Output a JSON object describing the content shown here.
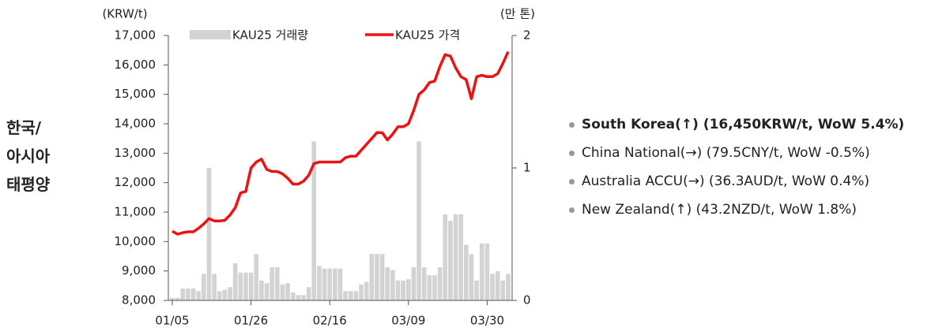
{
  "chart_data": {
    "type": "bar-line",
    "side_label": [
      "한국/",
      "아시아",
      "태평양"
    ],
    "ylabel": "(KRW/t)",
    "y2label": "(만 톤)",
    "categories": [
      "01/05",
      null,
      null,
      null,
      null,
      null,
      null,
      null,
      null,
      null,
      null,
      null,
      null,
      null,
      null,
      "01/26",
      null,
      null,
      null,
      null,
      null,
      null,
      null,
      null,
      null,
      null,
      null,
      null,
      null,
      null,
      "02/16",
      null,
      null,
      null,
      null,
      null,
      null,
      null,
      null,
      null,
      null,
      null,
      null,
      null,
      null,
      "03/09",
      null,
      null,
      null,
      null,
      null,
      null,
      null,
      null,
      null,
      null,
      null,
      null,
      null,
      null,
      "03/30",
      null,
      null,
      null,
      null
    ],
    "series": [
      {
        "name": "KAU25 거래량",
        "kind": "bar",
        "axis": "y2",
        "color": "#d3d3d3",
        "values": [
          0.02,
          0.02,
          0.09,
          0.09,
          0.09,
          0.07,
          0.2,
          1.0,
          0.2,
          0.07,
          0.08,
          0.1,
          0.28,
          0.21,
          0.21,
          0.21,
          0.35,
          0.15,
          0.13,
          0.25,
          0.25,
          0.12,
          0.13,
          0.06,
          0.04,
          0.04,
          0.1,
          1.2,
          0.26,
          0.24,
          0.24,
          0.24,
          0.24,
          0.07,
          0.07,
          0.07,
          0.12,
          0.14,
          0.35,
          0.35,
          0.35,
          0.25,
          0.23,
          0.15,
          0.15,
          0.16,
          0.25,
          1.2,
          0.25,
          0.19,
          0.19,
          0.25,
          0.65,
          0.6,
          0.65,
          0.65,
          0.42,
          0.35,
          0.15,
          0.43,
          0.43,
          0.2,
          0.22,
          0.15,
          0.2
        ]
      },
      {
        "name": "KAU25 가격",
        "kind": "line",
        "color": "#ee1111",
        "values": [
          10350,
          10250,
          10300,
          10330,
          10330,
          10450,
          10600,
          10780,
          10700,
          10700,
          10720,
          10900,
          11150,
          11650,
          11700,
          12500,
          12700,
          12800,
          12450,
          12380,
          12380,
          12300,
          12150,
          11950,
          11950,
          12050,
          12250,
          12650,
          12700,
          12700,
          12700,
          12700,
          12700,
          12850,
          12900,
          12900,
          13100,
          13300,
          13500,
          13700,
          13700,
          13450,
          13650,
          13900,
          13900,
          14000,
          14450,
          15000,
          15150,
          15400,
          15450,
          15950,
          16350,
          16300,
          15900,
          15600,
          15500,
          14850,
          15600,
          15650,
          15600,
          15600,
          15700,
          16050,
          16450
        ]
      }
    ],
    "ylim": [
      8000,
      17000
    ],
    "yticks": [
      {
        "value": 8000,
        "label": "8,000"
      },
      {
        "value": 9000,
        "label": "9,000"
      },
      {
        "value": 10000,
        "label": "10,000"
      },
      {
        "value": 11000,
        "label": "11,000"
      },
      {
        "value": 12000,
        "label": "12,000"
      },
      {
        "value": 13000,
        "label": "13,000"
      },
      {
        "value": 14000,
        "label": "14,000"
      },
      {
        "value": 15000,
        "label": "15,000"
      },
      {
        "value": 16000,
        "label": "16,000"
      },
      {
        "value": 17000,
        "label": "17,000"
      }
    ],
    "y2lim": [
      0,
      2
    ],
    "y2ticks": [
      0,
      1,
      2
    ],
    "notes": [
      {
        "text": "South Korea(↑) (16,450KRW/t, WoW 5.4%)",
        "bold": true
      },
      {
        "text": "China National(→) (79.5CNY/t, WoW -0.5%)",
        "bold": false
      },
      {
        "text": "Australia ACCU(→) (36.3AUD/t, WoW 0.4%)",
        "bold": false
      },
      {
        "text": "New Zealand(↑) (43.2NZD/t, WoW 1.8%)",
        "bold": false
      }
    ]
  }
}
